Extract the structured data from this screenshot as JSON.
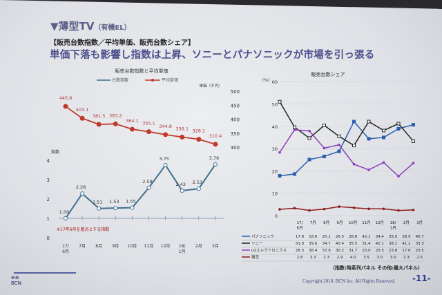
{
  "slide": {
    "title": "▼薄型TV",
    "title_sub": "（有機EL）",
    "subtitle": "【販売台数指数／平均単価、販売台数シェア】",
    "headline": "単価下落も影響し指数は上昇、ソニーとパナソニックが市場を引っ張る",
    "footnote": "（指数:時系列パネル その他:最大パネル）",
    "copyright": "Copyright 2018. BCN Inc. All Rights Reserved.",
    "page": "-11-",
    "logo": "BCN"
  },
  "colors": {
    "index": "#3f6f8f",
    "price": "#c0392b",
    "panasonic": "#2a5fb0",
    "sony": "#222222",
    "lg": "#8a3fb8",
    "toshiba": "#8b1a1a"
  },
  "chart_data": [
    {
      "type": "line",
      "title": "販売台数指数と平均単価",
      "categories": [
        "17/\n6月",
        "7月",
        "8月",
        "9月",
        "10月",
        "11月",
        "12月",
        "18/\n1月",
        "2月",
        "3月"
      ],
      "series": [
        {
          "name": "台数指数",
          "axis": "left",
          "values": [
            1.0,
            2.28,
            1.51,
            1.53,
            1.55,
            2.58,
            3.75,
            2.43,
            2.53,
            3.79
          ]
        },
        {
          "name": "平均単価",
          "axis": "right",
          "values": [
            445.8,
            403.1,
            381.5,
            383.2,
            364.1,
            355.1,
            344.8,
            336.1,
            328.1,
            310.4
          ]
        }
      ],
      "ylabel": "指数",
      "ylim": [
        0,
        4
      ],
      "y2label": "単価（千円）",
      "y2lim": [
        300,
        500
      ],
      "y2ticks": [
        300,
        350,
        400,
        450,
        500
      ],
      "yticks": [
        0,
        1,
        2,
        3,
        4
      ],
      "note": "※17年6月を基点とする指数",
      "legend": "top"
    },
    {
      "type": "line",
      "title": "販売台数シェア",
      "ylabel": "(%)",
      "ylim": [
        0,
        60
      ],
      "yticks": [
        0,
        10,
        20,
        30,
        40,
        50,
        60
      ],
      "categories": [
        "17/\n6月",
        "7月",
        "8月",
        "9月",
        "10月",
        "11月",
        "12月",
        "18/\n1月",
        "2月",
        "3月"
      ],
      "series": [
        {
          "name": "パナソニック",
          "values": [
            17.8,
            18.6,
            25.1,
            26.5,
            28.8,
            42.1,
            34.4,
            35.0,
            38.9,
            40.7
          ]
        },
        {
          "name": "ソニー",
          "values": [
            51.0,
            39.6,
            34.7,
            40.4,
            35.5,
            31.4,
            42.1,
            38.1,
            41.2,
            33.3
          ]
        },
        {
          "name": "LGエレクトロニクス",
          "values": [
            28.3,
            38.4,
            37.9,
            30.2,
            31.7,
            23.0,
            20.5,
            23.8,
            17.6,
            23.5
          ]
        },
        {
          "name": "東芝",
          "values": [
            2.8,
            3.3,
            2.3,
            2.9,
            4.0,
            3.5,
            3.0,
            3.0,
            2.3,
            2.5
          ]
        }
      ],
      "legend": "table-below"
    }
  ]
}
